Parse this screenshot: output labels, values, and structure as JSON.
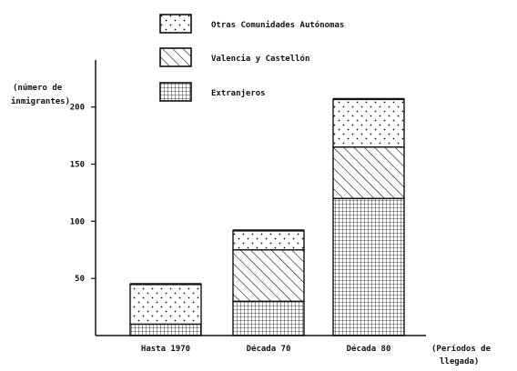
{
  "chart_data": {
    "type": "bar",
    "stacked": true,
    "categories": [
      "Hasta 1970",
      "Década 70",
      "Década 80"
    ],
    "series": [
      {
        "name": "Extranjeros",
        "values": [
          10,
          30,
          120
        ],
        "pattern": "grid"
      },
      {
        "name": "Valencia y Castellón",
        "values": [
          0,
          45,
          45
        ],
        "pattern": "hatch"
      },
      {
        "name": "Otras Comunidades Autónomas",
        "values": [
          35,
          17,
          42
        ],
        "pattern": "dots"
      }
    ],
    "ylabel_line1": "(número de",
    "ylabel_line2": "inmigrantes)",
    "xlabel_line1": "(Períodos de",
    "xlabel_line2": "llegada)",
    "yticks": [
      50,
      100,
      150,
      200
    ],
    "ylim": [
      0,
      230
    ],
    "legend_position": "top",
    "grid": false,
    "colors": {
      "ink": "#111111",
      "background": "#ffffff"
    }
  }
}
